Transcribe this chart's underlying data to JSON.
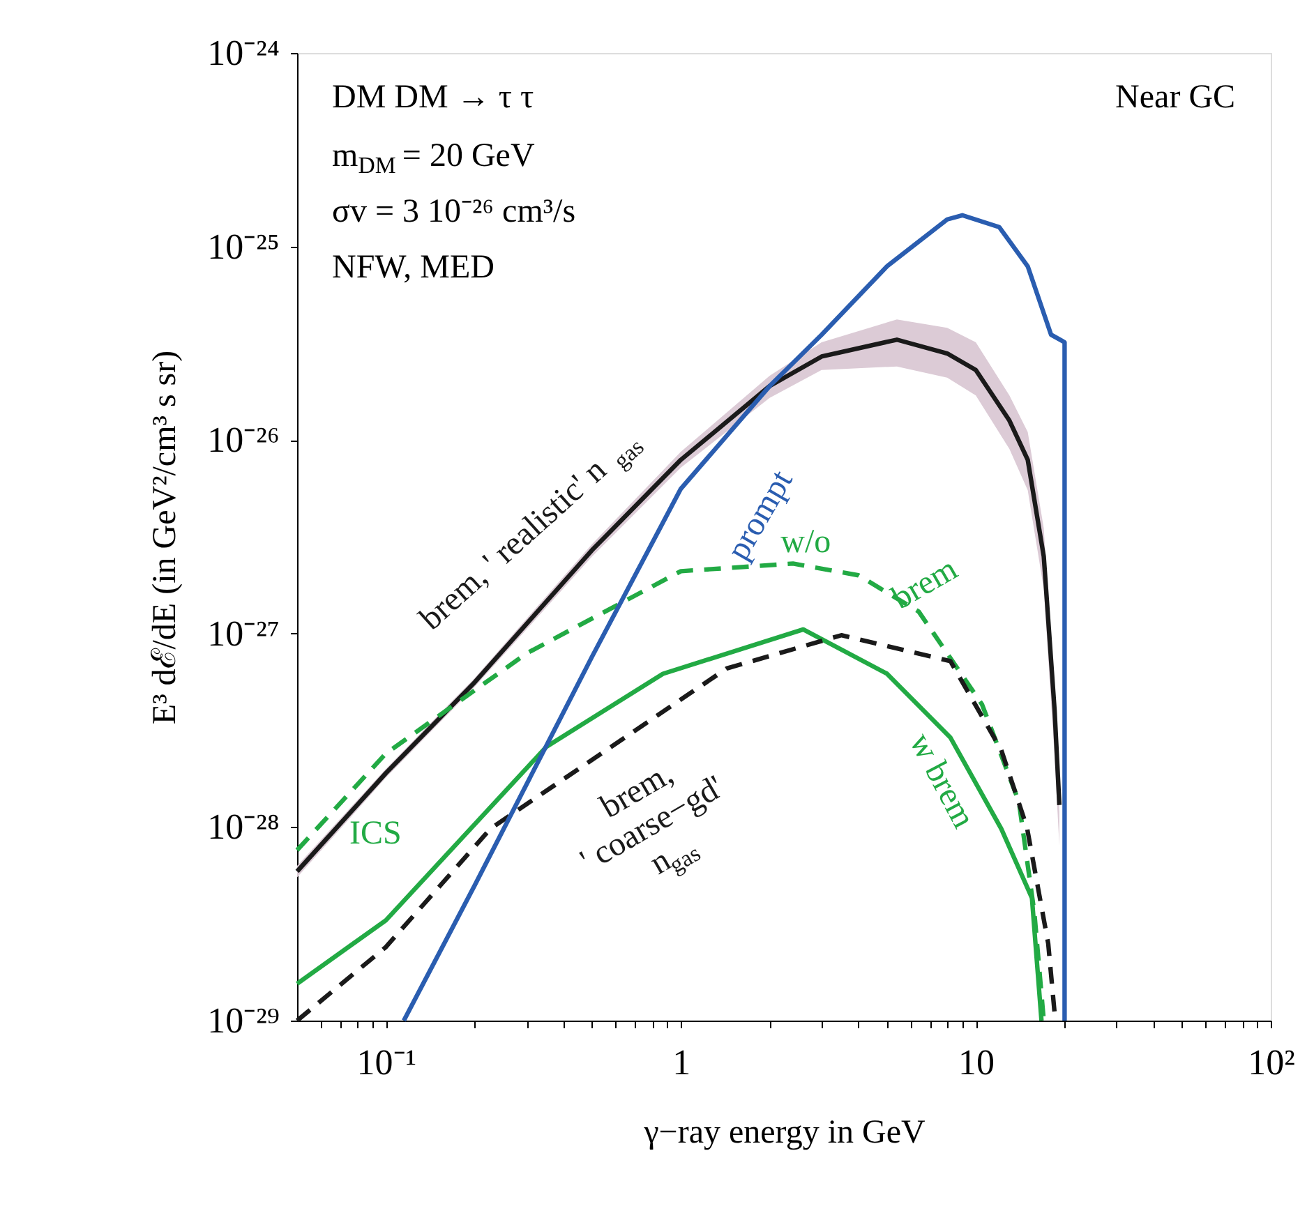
{
  "chart_data": {
    "type": "line",
    "xlabel": "γ−ray energy in GeV",
    "ylabel": "E³  dℰ/dE  (in GeV²/cm³ s sr)",
    "log": "xy",
    "grid": false,
    "xlim": [
      0.05,
      100
    ],
    "ylim": [
      1e-29,
      1e-24
    ],
    "xticks": [
      {
        "value": 0.06,
        "label": null
      },
      {
        "value": 0.07,
        "label": null
      },
      {
        "value": 0.08,
        "label": null
      },
      {
        "value": 0.09,
        "label": null
      },
      {
        "value": 0.1,
        "label": "10⁻¹"
      },
      {
        "value": 0.2,
        "label": null
      },
      {
        "value": 0.3,
        "label": null
      },
      {
        "value": 0.4,
        "label": null
      },
      {
        "value": 0.5,
        "label": null
      },
      {
        "value": 0.6,
        "label": null
      },
      {
        "value": 0.7,
        "label": null
      },
      {
        "value": 0.8,
        "label": null
      },
      {
        "value": 0.9,
        "label": null
      },
      1,
      {
        "value": 2,
        "label": null
      },
      {
        "value": 3,
        "label": null
      },
      {
        "value": 4,
        "label": null
      },
      {
        "value": 5,
        "label": null
      },
      {
        "value": 6,
        "label": null
      },
      {
        "value": 7,
        "label": null
      },
      {
        "value": 8,
        "label": null
      },
      {
        "value": 9,
        "label": null
      },
      10,
      {
        "value": 20,
        "label": null
      },
      {
        "value": 30,
        "label": null
      },
      {
        "value": 40,
        "label": null
      },
      {
        "value": 50,
        "label": null
      },
      {
        "value": 60,
        "label": null
      },
      {
        "value": 70,
        "label": null
      },
      {
        "value": 80,
        "label": null
      },
      {
        "value": 90,
        "label": null
      },
      {
        "value": 100,
        "label": "10²"
      }
    ],
    "yticks": [
      {
        "value": 1e-29,
        "label": "10⁻²⁹"
      },
      {
        "value": 1e-28,
        "label": "10⁻²⁸"
      },
      {
        "value": 1e-27,
        "label": "10⁻²⁷"
      },
      {
        "value": 1e-26,
        "label": "10⁻²⁶"
      },
      {
        "value": 1e-25,
        "label": "10⁻²⁵"
      },
      {
        "value": 1e-24,
        "label": "10⁻²⁴"
      }
    ],
    "series": [
      {
        "color": "#1a1a1a",
        "line_style": "solid",
        "x": [
          0.05,
          0.1,
          0.2,
          0.5,
          1,
          2,
          3,
          5.4,
          8,
          10,
          13,
          15,
          17,
          18.5,
          19.2
        ],
        "values": [
          5.9e-29,
          1.9e-28,
          5.6e-28,
          2.7e-27,
          7.9e-27,
          1.9e-26,
          2.7e-26,
          3.3e-26,
          2.8e-26,
          2.3e-26,
          1.26e-26,
          7.9e-27,
          2.5e-27,
          4e-28,
          1.3e-28
        ],
        "lower": [
          5.5e-29,
          1.8e-28,
          5.3e-28,
          2.5e-27,
          7.2e-27,
          1.65e-26,
          2.3e-26,
          2.4e-26,
          2.1e-26,
          1.7e-26,
          9e-27,
          5.5e-27,
          1.7e-27,
          2.3e-28,
          8e-29
        ],
        "upper": [
          6.3e-29,
          2e-28,
          5.9e-28,
          2.9e-27,
          8.7e-27,
          2.15e-26,
          3.2e-26,
          4.2e-26,
          3.8e-26,
          3.2e-26,
          1.7e-26,
          1.1e-26,
          3.5e-27,
          4.3e-28,
          1.2e-28
        ]
      },
      {
        "color": "#22aa44",
        "line_style": "dashed",
        "x": [
          0.05,
          0.1,
          0.3,
          1,
          2.4,
          4,
          6.4,
          10.5,
          14,
          15.8,
          17
        ],
        "values": [
          7.6e-29,
          2.4e-28,
          7.9e-28,
          2.1e-27,
          2.3e-27,
          2e-27,
          1.3e-27,
          4.3e-28,
          1.35e-28,
          3.6e-29,
          1e-29
        ]
      },
      {
        "color": "#22aa44",
        "line_style": "solid",
        "x": [
          0.05,
          0.1,
          0.35,
          0.87,
          2.6,
          5,
          8.2,
          12.2,
          15.5,
          16.7
        ],
        "values": [
          1.55e-29,
          3.3e-29,
          2.6e-28,
          6.2e-28,
          1.05e-27,
          6.2e-28,
          2.9e-28,
          9.8e-29,
          4.3e-29,
          1e-29
        ]
      },
      {
        "color": "#1a1a1a",
        "line_style": "dashed",
        "x": [
          0.05,
          0.1,
          0.226,
          1.43,
          3.5,
          8.2,
          12.2,
          14.9,
          17.6,
          18.6
        ],
        "values": [
          1e-29,
          2.4e-29,
          9.8e-29,
          6.6e-28,
          9.8e-28,
          7.2e-28,
          2.5e-28,
          1e-28,
          2.5e-29,
          1e-29
        ]
      },
      {
        "color": "#2a5db0",
        "line_style": "solid",
        "x": [
          0.115,
          0.2,
          0.5,
          1,
          2,
          3,
          5,
          8,
          9,
          12,
          15,
          18,
          20,
          20
        ],
        "values": [
          1e-29,
          5e-29,
          7.6e-28,
          5.6e-27,
          1.9e-26,
          3.5e-26,
          7.9e-26,
          1.38e-25,
          1.45e-25,
          1.26e-25,
          7.9e-26,
          3.5e-26,
          3.2e-26,
          1e-29
        ]
      }
    ],
    "annotations": [
      "DM DM → τ τ",
      "m$_{DM}$ = 20 GeV",
      "σv = 3  10⁻²⁶  cm³/s",
      "NFW, MED",
      "Near GC",
      "brem, ' realistic' n$_{gas}$",
      "prompt",
      "w/o",
      "brem",
      "ICS",
      "brem,\n' coarse−gd'\nn$_{gas}$",
      "w brem"
    ]
  }
}
